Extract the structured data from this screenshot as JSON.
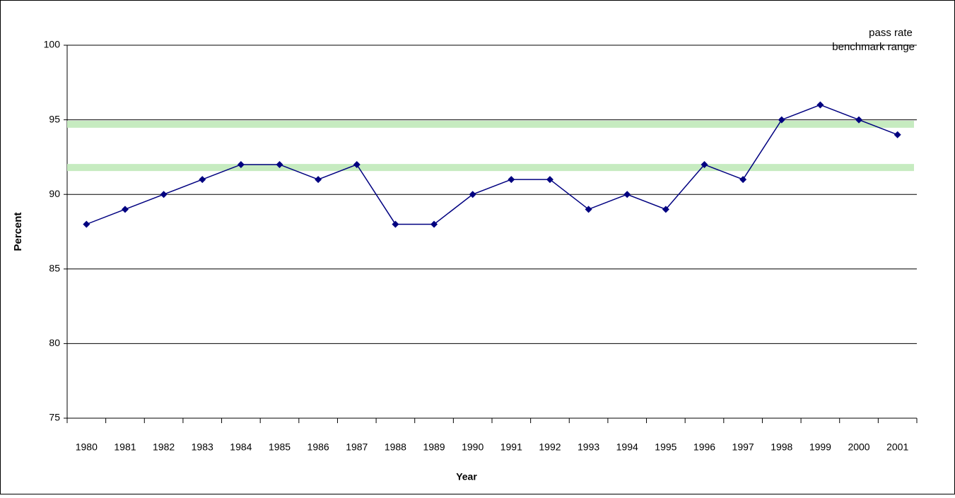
{
  "chart_data": {
    "type": "line",
    "x_label": "Year",
    "y_label": "Percent",
    "categories": [
      "1980",
      "1981",
      "1982",
      "1983",
      "1984",
      "1985",
      "1986",
      "1987",
      "1988",
      "1989",
      "1990",
      "1991",
      "1992",
      "1993",
      "1994",
      "1995",
      "1996",
      "1997",
      "1998",
      "1999",
      "2000",
      "2001"
    ],
    "series": [
      {
        "name": "pass rate",
        "color": "#000080",
        "values": [
          88,
          89,
          90,
          91,
          92,
          92,
          91,
          92,
          88,
          88,
          90,
          91,
          91,
          89,
          90,
          89,
          92,
          91,
          95,
          96,
          95,
          94
        ]
      }
    ],
    "benchmark": {
      "name": "benchmark range",
      "color": "#c6ebc0",
      "values": [
        91.8,
        94.7
      ]
    },
    "ylim": [
      75,
      100
    ],
    "yticks": [
      75,
      80,
      85,
      90,
      95,
      100
    ],
    "grid": true,
    "legend": "top-right"
  }
}
